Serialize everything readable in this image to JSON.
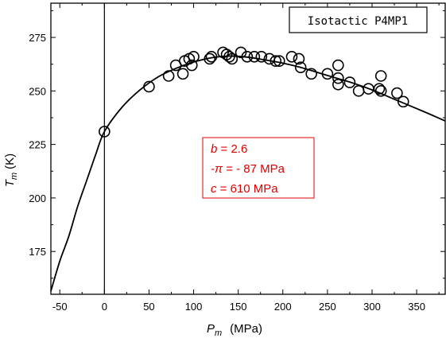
{
  "chart_data": {
    "type": "scatter",
    "title": "Isotactic P4MP1",
    "xlabel_main": "P",
    "xlabel_sub": "m",
    "xlabel_unit": "(MPa)",
    "ylabel_main": "T",
    "ylabel_sub": "m",
    "ylabel_unit": "(K)",
    "xlim": [
      -60,
      382
    ],
    "ylim": [
      155,
      291
    ],
    "xticks": [
      -50,
      0,
      50,
      100,
      150,
      200,
      250,
      300,
      350
    ],
    "yticks": [
      175,
      200,
      225,
      250,
      275
    ],
    "xtick_labels": [
      "-50",
      "0",
      "50",
      "100",
      "150",
      "200",
      "250",
      "300",
      "350"
    ],
    "ytick_labels": [
      "175",
      "200",
      "225",
      "250",
      "275"
    ],
    "vertical_reference_x": 0,
    "series": [
      {
        "marker": "open-circle",
        "points": [
          [
            0,
            231
          ],
          [
            50,
            252
          ],
          [
            72,
            257
          ],
          [
            80,
            262
          ],
          [
            88,
            258
          ],
          [
            90,
            264
          ],
          [
            95,
            265
          ],
          [
            98,
            262
          ],
          [
            100,
            266
          ],
          [
            118,
            265
          ],
          [
            120,
            266
          ],
          [
            133,
            268
          ],
          [
            137,
            267
          ],
          [
            140,
            266
          ],
          [
            143,
            265
          ],
          [
            153,
            268
          ],
          [
            160,
            266
          ],
          [
            168,
            266
          ],
          [
            176,
            266
          ],
          [
            185,
            265
          ],
          [
            192,
            264
          ],
          [
            196,
            264
          ],
          [
            210,
            266
          ],
          [
            218,
            265
          ],
          [
            220,
            261
          ],
          [
            232,
            258
          ],
          [
            250,
            258
          ],
          [
            262,
            262
          ],
          [
            262,
            256
          ],
          [
            262,
            253
          ],
          [
            275,
            254
          ],
          [
            285,
            250
          ],
          [
            296,
            251
          ],
          [
            308,
            251
          ],
          [
            310,
            250
          ],
          [
            310,
            257
          ],
          [
            328,
            249
          ],
          [
            335,
            245
          ]
        ]
      }
    ],
    "fit_curve": {
      "b": 2.6,
      "pi": 87,
      "c": 610,
      "x_range": [
        -60,
        382
      ],
      "points": [
        [
          -60,
          156.5
        ],
        [
          -50,
          170.5
        ],
        [
          -40,
          182
        ],
        [
          -30,
          196
        ],
        [
          -20,
          208
        ],
        [
          -10,
          220
        ],
        [
          0,
          231
        ],
        [
          20,
          242.5
        ],
        [
          40,
          250.5
        ],
        [
          60,
          256.5
        ],
        [
          80,
          260.5
        ],
        [
          100,
          263.5
        ],
        [
          120,
          265.5
        ],
        [
          140,
          266.3
        ],
        [
          160,
          265.8
        ],
        [
          180,
          264.5
        ],
        [
          200,
          263
        ],
        [
          220,
          261
        ],
        [
          240,
          258.5
        ],
        [
          260,
          256
        ],
        [
          280,
          253.5
        ],
        [
          300,
          250.5
        ],
        [
          320,
          247
        ],
        [
          340,
          243.5
        ],
        [
          360,
          240
        ],
        [
          382,
          236
        ]
      ]
    },
    "annotations": [
      {
        "italic": "b",
        "rest": " = 2.6"
      },
      {
        "italic": "-π",
        "rest": " = - 87 MPa"
      },
      {
        "italic": "c",
        "rest": " = 610 MPa"
      }
    ],
    "colors": {
      "axis": "#000000",
      "annotation": "#e00000",
      "marker": "#000000",
      "background": "#ffffff"
    }
  }
}
